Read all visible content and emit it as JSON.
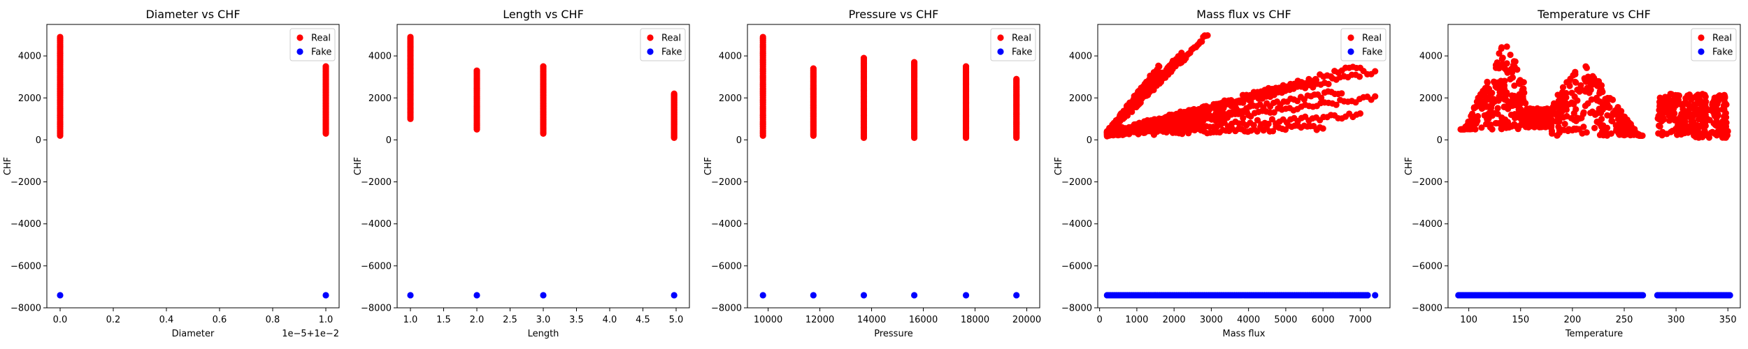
{
  "chart_data": [
    {
      "type": "scatter",
      "title": "Diameter vs CHF",
      "xlabel": "Diameter",
      "ylabel": "CHF",
      "xlim": [
        -0.05,
        1.05
      ],
      "ylim": [
        -8000,
        5500
      ],
      "xticks": [
        0.0,
        0.2,
        0.4,
        0.6,
        0.8,
        1.0
      ],
      "xtick_labels": [
        "0.0",
        "0.2",
        "0.4",
        "0.6",
        "0.8",
        "1.0"
      ],
      "yticks": [
        -8000,
        -6000,
        -4000,
        -2000,
        0,
        2000,
        4000
      ],
      "ytick_labels": [
        "−8000",
        "−6000",
        "−4000",
        "−2000",
        "0",
        "2000",
        "4000"
      ],
      "offset_text": "1e−5+1e−2",
      "legend": "top-right",
      "series": [
        {
          "name": "Real",
          "color": "#ff0000",
          "kind": "bands",
          "bands": [
            {
              "x": 0.0,
              "ymin": 200,
              "ymax": 4900
            },
            {
              "x": 1.0,
              "ymin": 300,
              "ymax": 3500
            }
          ]
        },
        {
          "name": "Fake",
          "color": "#0000ff",
          "kind": "points",
          "points": [
            [
              0.0,
              -7400
            ],
            [
              1.0,
              -7400
            ]
          ]
        }
      ]
    },
    {
      "type": "scatter",
      "title": "Length vs CHF",
      "xlabel": "Length",
      "ylabel": "CHF",
      "xlim": [
        0.8,
        5.2
      ],
      "ylim": [
        -8000,
        5500
      ],
      "xticks": [
        1.0,
        1.5,
        2.0,
        2.5,
        3.0,
        3.5,
        4.0,
        4.5,
        5.0
      ],
      "xtick_labels": [
        "1.0",
        "1.5",
        "2.0",
        "2.5",
        "3.0",
        "3.5",
        "4.0",
        "4.5",
        "5.0"
      ],
      "yticks": [
        -8000,
        -6000,
        -4000,
        -2000,
        0,
        2000,
        4000
      ],
      "ytick_labels": [
        "−8000",
        "−6000",
        "−4000",
        "−2000",
        "0",
        "2000",
        "4000"
      ],
      "legend": "top-right",
      "series": [
        {
          "name": "Real",
          "color": "#ff0000",
          "kind": "bands",
          "bands": [
            {
              "x": 1.0,
              "ymin": 1000,
              "ymax": 4900
            },
            {
              "x": 2.0,
              "ymin": 500,
              "ymax": 3300
            },
            {
              "x": 3.0,
              "ymin": 300,
              "ymax": 3500
            },
            {
              "x": 4.97,
              "ymin": 100,
              "ymax": 2200
            }
          ]
        },
        {
          "name": "Fake",
          "color": "#0000ff",
          "kind": "points",
          "points": [
            [
              1.0,
              -7400
            ],
            [
              2.0,
              -7400
            ],
            [
              3.0,
              -7400
            ],
            [
              4.97,
              -7400
            ]
          ]
        }
      ]
    },
    {
      "type": "scatter",
      "title": "Pressure vs CHF",
      "xlabel": "Pressure",
      "ylabel": "CHF",
      "xlim": [
        9200,
        20500
      ],
      "ylim": [
        -8000,
        5500
      ],
      "xticks": [
        10000,
        12000,
        14000,
        16000,
        18000,
        20000
      ],
      "xtick_labels": [
        "10000",
        "12000",
        "14000",
        "16000",
        "18000",
        "20000"
      ],
      "yticks": [
        -8000,
        -6000,
        -4000,
        -2000,
        0,
        2000,
        4000
      ],
      "ytick_labels": [
        "−8000",
        "−6000",
        "−4000",
        "−2000",
        "0",
        "2000",
        "4000"
      ],
      "legend": "top-right",
      "series": [
        {
          "name": "Real",
          "color": "#ff0000",
          "kind": "bands",
          "bands": [
            {
              "x": 9800,
              "ymin": 200,
              "ymax": 4900
            },
            {
              "x": 11750,
              "ymin": 200,
              "ymax": 3400
            },
            {
              "x": 13700,
              "ymin": 100,
              "ymax": 3900
            },
            {
              "x": 15650,
              "ymin": 100,
              "ymax": 3700
            },
            {
              "x": 17650,
              "ymin": 100,
              "ymax": 3500
            },
            {
              "x": 19600,
              "ymin": 100,
              "ymax": 2900
            }
          ]
        },
        {
          "name": "Fake",
          "color": "#0000ff",
          "kind": "points",
          "points": [
            [
              9800,
              -7400
            ],
            [
              11750,
              -7400
            ],
            [
              13700,
              -7400
            ],
            [
              15650,
              -7400
            ],
            [
              17650,
              -7400
            ],
            [
              19600,
              -7400
            ]
          ]
        }
      ]
    },
    {
      "type": "scatter",
      "title": "Mass flux vs CHF",
      "xlabel": "Mass flux",
      "ylabel": "CHF",
      "xlim": [
        -50,
        7800
      ],
      "ylim": [
        -8000,
        5500
      ],
      "xticks": [
        0,
        1000,
        2000,
        3000,
        4000,
        5000,
        6000,
        7000
      ],
      "xtick_labels": [
        "0",
        "1000",
        "2000",
        "3000",
        "4000",
        "5000",
        "6000",
        "7000"
      ],
      "yticks": [
        -8000,
        -6000,
        -4000,
        -2000,
        0,
        2000,
        4000
      ],
      "ytick_labels": [
        "−8000",
        "−6000",
        "−4000",
        "−2000",
        "0",
        "2000",
        "4000"
      ],
      "legend": "top-right",
      "series": [
        {
          "name": "Real",
          "color": "#ff0000",
          "kind": "fan",
          "x0": 200,
          "x1": 7400,
          "y0": 300,
          "rays": [
            [
              1600,
              3500
            ],
            [
              2200,
              4100
            ],
            [
              2900,
              5000
            ],
            [
              4800,
              2400
            ],
            [
              7000,
              3500
            ],
            [
              5800,
              2800
            ],
            [
              7400,
              3300
            ],
            [
              6500,
              2300
            ],
            [
              7400,
              2000
            ],
            [
              4000,
              1300
            ],
            [
              7000,
              1200
            ],
            [
              2500,
              800
            ],
            [
              6000,
              600
            ]
          ],
          "noise": 250
        },
        {
          "name": "Fake",
          "color": "#0000ff",
          "kind": "hline",
          "xmin": 200,
          "xmax": 7200,
          "y": -7400,
          "extra": [
            [
              7400,
              -7400
            ]
          ]
        }
      ]
    },
    {
      "type": "scatter",
      "title": "Temperature vs CHF",
      "xlabel": "Temperature",
      "ylabel": "CHF",
      "xlim": [
        80,
        362
      ],
      "ylim": [
        -8000,
        5500
      ],
      "xticks": [
        100,
        150,
        200,
        250,
        300,
        350
      ],
      "xtick_labels": [
        "100",
        "150",
        "200",
        "250",
        "300",
        "350"
      ],
      "yticks": [
        -8000,
        -6000,
        -4000,
        -2000,
        0,
        2000,
        4000
      ],
      "ytick_labels": [
        "−8000",
        "−6000",
        "−4000",
        "−2000",
        "0",
        "2000",
        "4000"
      ],
      "legend": "top-right",
      "series": [
        {
          "name": "Real",
          "color": "#ff0000",
          "kind": "clusters",
          "clusters": [
            {
              "xmin": 92,
              "xmax": 155,
              "ymin": 500,
              "ymax": 4900,
              "peak": 135
            },
            {
              "xmin": 155,
              "xmax": 180,
              "ymin": 600,
              "ymax": 1500
            },
            {
              "xmin": 180,
              "xmax": 268,
              "ymin": 200,
              "ymax": 3800,
              "peak": 210
            },
            {
              "xmin": 282,
              "xmax": 350,
              "ymin": 100,
              "ymax": 2200
            }
          ]
        },
        {
          "name": "Fake",
          "color": "#0000ff",
          "kind": "hline",
          "xmin": 90,
          "xmax": 268,
          "y": -7400,
          "extra_range": [
            282,
            352
          ]
        }
      ]
    }
  ]
}
